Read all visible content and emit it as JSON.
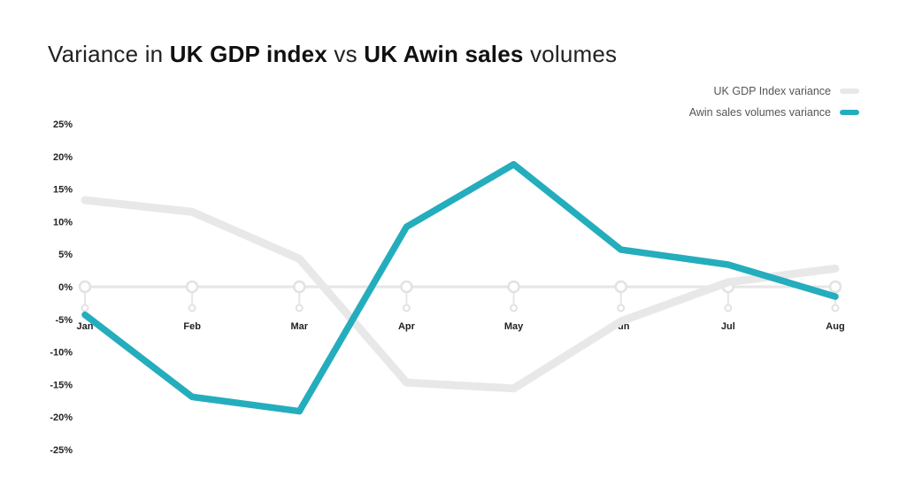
{
  "title": {
    "part1": "Variance in ",
    "part2": "UK GDP index",
    "part3": " vs ",
    "part4": "UK Awin sales",
    "part5": " volumes"
  },
  "chart_data": {
    "type": "line",
    "categories": [
      "Jan",
      "Feb",
      "Mar",
      "Apr",
      "May",
      "Jun",
      "Jul",
      "Aug"
    ],
    "ylim": [
      -25,
      25
    ],
    "yticks": [
      25,
      20,
      15,
      10,
      5,
      0,
      -5,
      -10,
      -15,
      -20,
      -25
    ],
    "ytick_labels": [
      "25%",
      "20%",
      "15%",
      "10%",
      "5%",
      "0%",
      "-5%",
      "-10%",
      "-15%",
      "-20%",
      "-25%"
    ],
    "grid": false,
    "legend_position": "top-right",
    "series": [
      {
        "name": "UK GDP Index variance",
        "color": "#e8e8e8",
        "values": [
          13.3,
          11.5,
          4.3,
          -14.7,
          -15.6,
          -5.3,
          0.7,
          2.8
        ]
      },
      {
        "name": "Awin sales volumes variance",
        "color": "#24adbd",
        "values": [
          -4.3,
          -16.9,
          -19.1,
          9.2,
          18.8,
          5.7,
          3.4,
          -1.5
        ]
      }
    ]
  }
}
